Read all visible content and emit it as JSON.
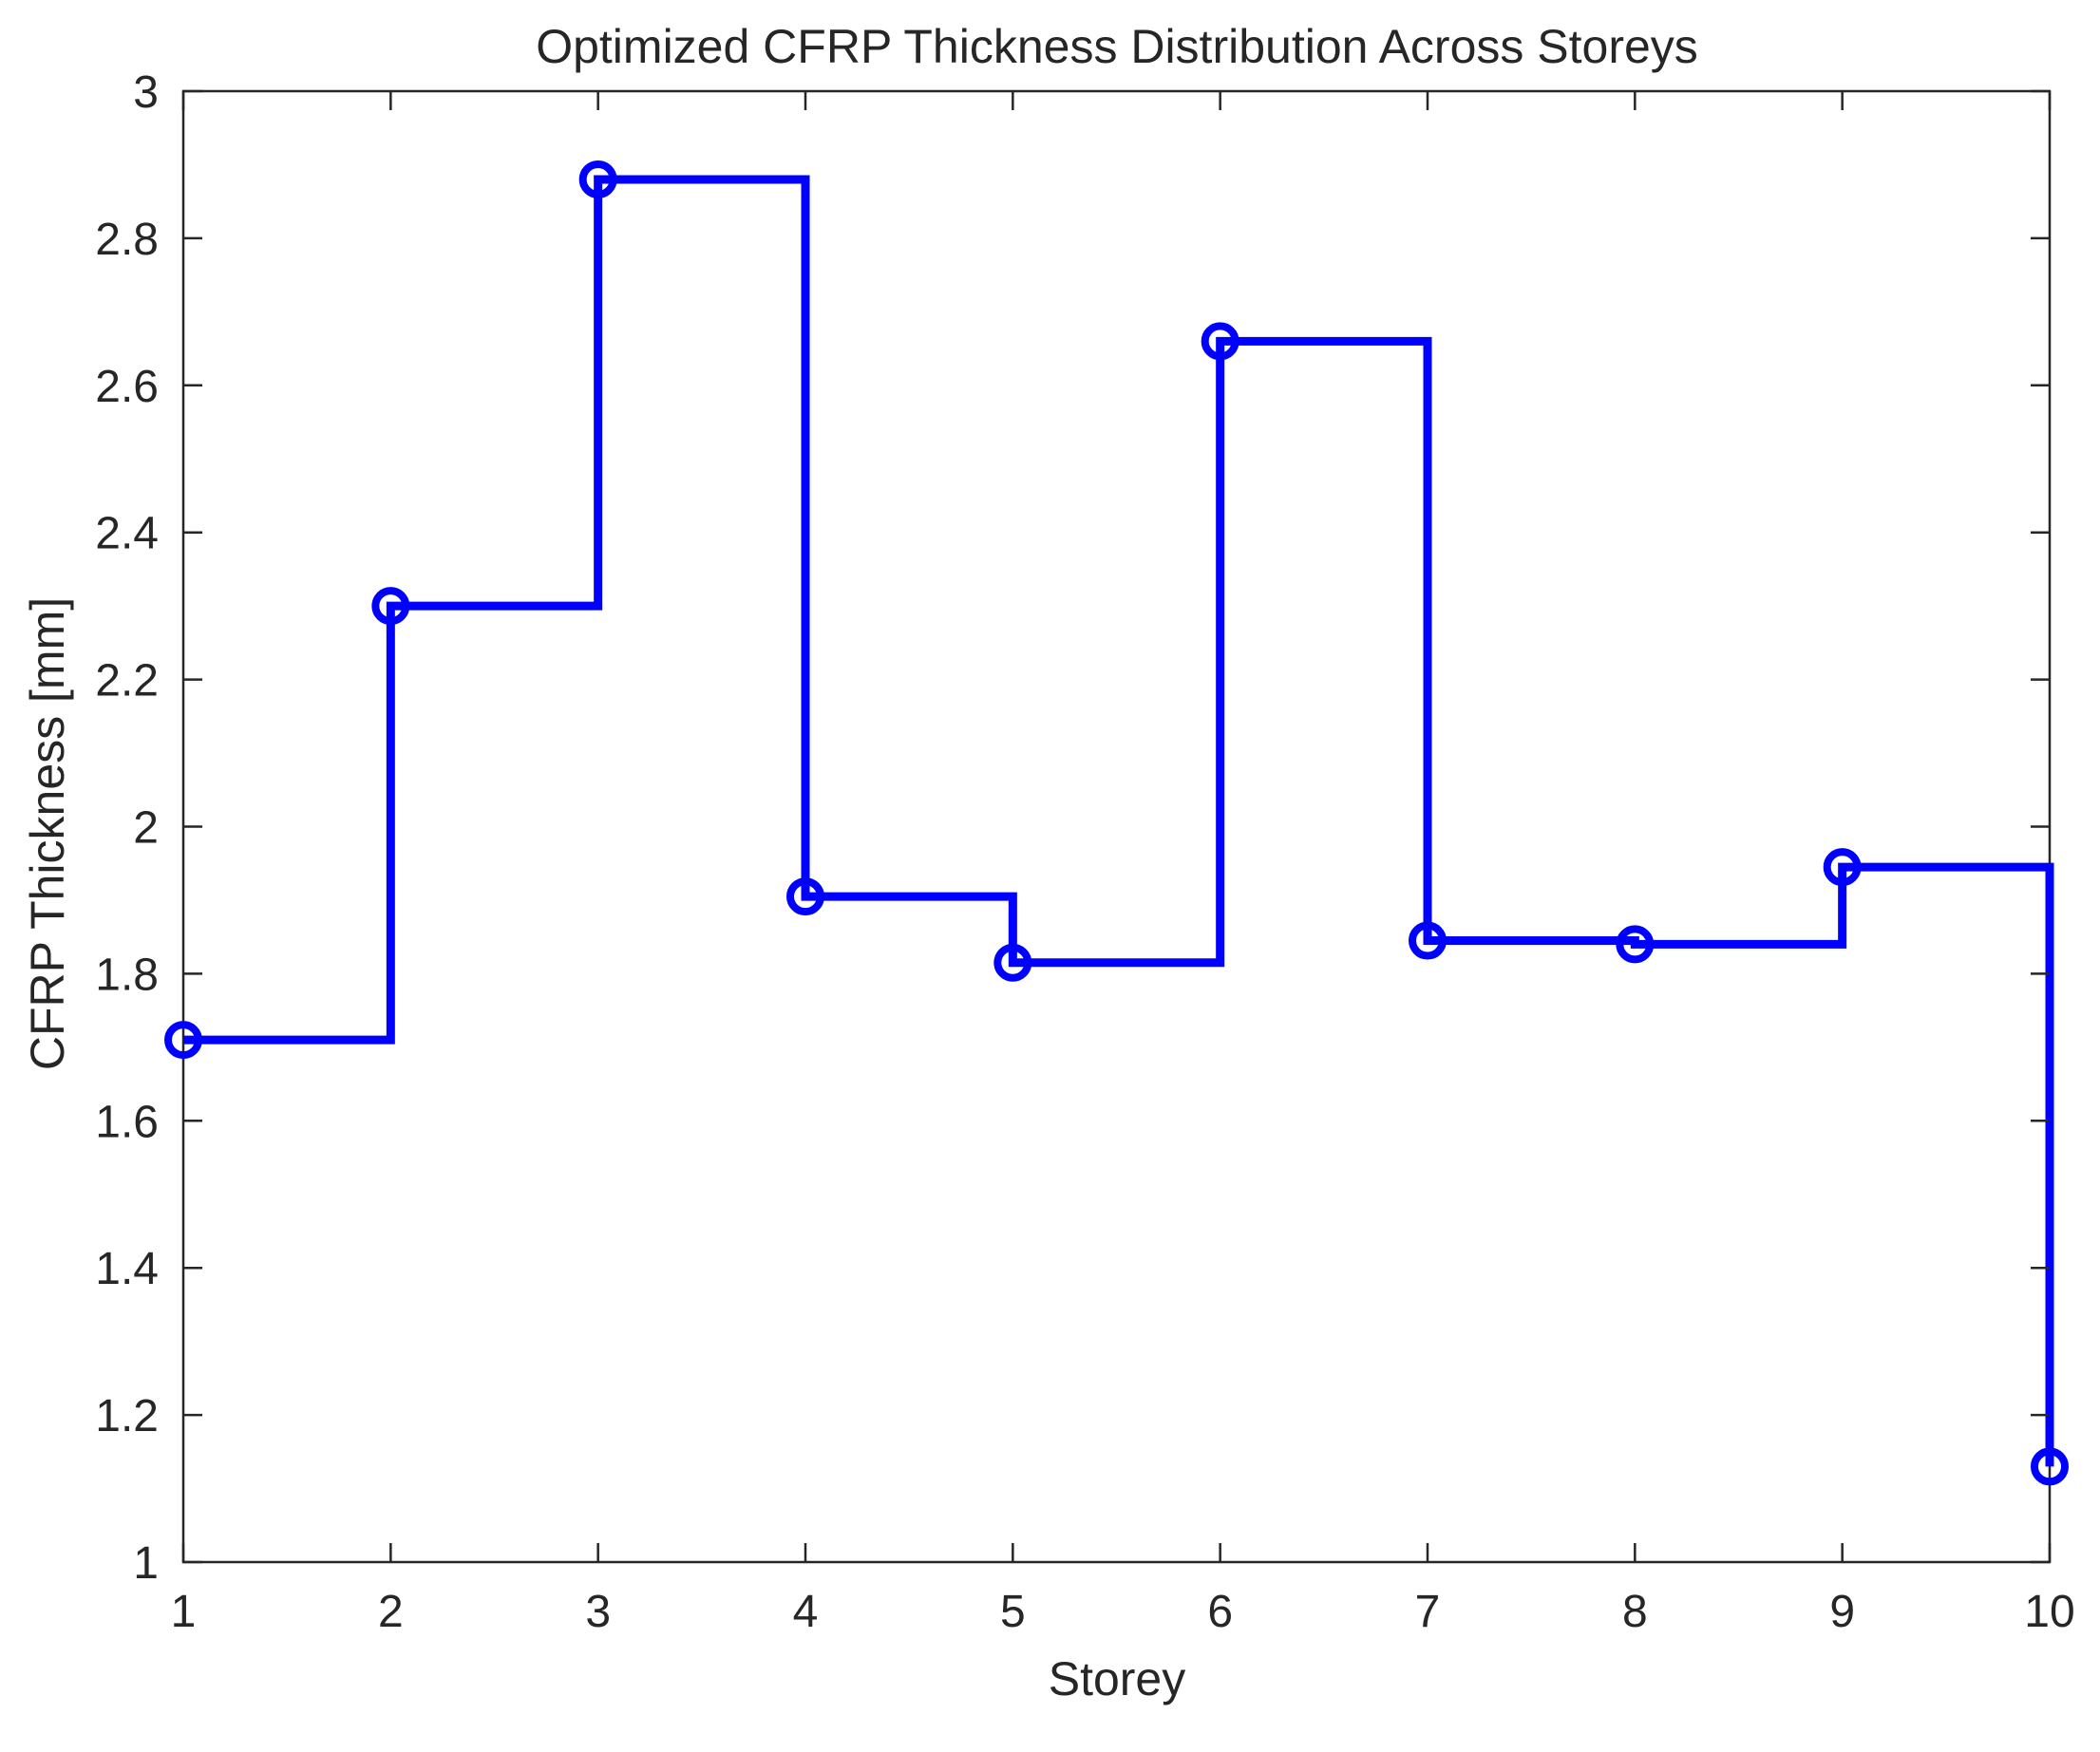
{
  "chart_data": {
    "type": "line",
    "line_style": "stairs",
    "title": "Optimized CFRP Thickness Distribution Across Storeys",
    "xlabel": "Storey",
    "ylabel": "CFRP Thickness [mm]",
    "xlim": [
      1,
      10
    ],
    "ylim": [
      1,
      3
    ],
    "xticks": [
      1,
      2,
      3,
      4,
      5,
      6,
      7,
      8,
      9,
      10
    ],
    "xtick_labels": [
      "1",
      "2",
      "3",
      "4",
      "5",
      "6",
      "7",
      "8",
      "9",
      "10"
    ],
    "yticks": [
      1,
      1.2,
      1.4,
      1.6,
      1.8,
      2,
      2.2,
      2.4,
      2.6,
      2.8,
      3
    ],
    "ytick_labels": [
      "1",
      "1.2",
      "1.4",
      "1.6",
      "1.8",
      "2",
      "2.2",
      "2.4",
      "2.6",
      "2.8",
      "3"
    ],
    "grid": false,
    "legend": false,
    "series": [
      {
        "color": "#0000ff",
        "marker": "circle",
        "x": [
          1,
          2,
          3,
          4,
          5,
          6,
          7,
          8,
          9,
          10
        ],
        "values": [
          1.71,
          2.3,
          2.88,
          1.905,
          1.815,
          2.66,
          1.845,
          1.84,
          1.945,
          1.13
        ]
      }
    ]
  }
}
